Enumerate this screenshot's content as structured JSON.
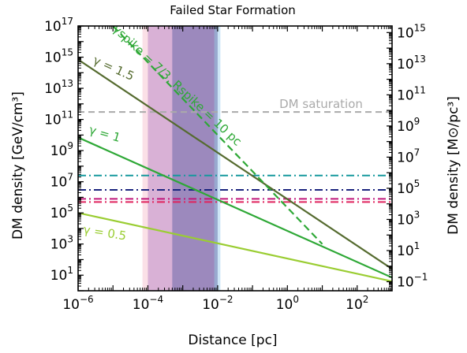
{
  "chart_data": {
    "type": "line",
    "title": "Failed Star Formation",
    "xlabel": "Distance [pc]",
    "ylabel_left": "DM density [GeV/cm³]",
    "ylabel_right": "DM density [M⊙/pc³]",
    "x_scale": "log",
    "y_scale": "log",
    "xlim": [
      1e-06,
      1000
    ],
    "ylim": [
      1,
      1e+17
    ],
    "ylim_right": [
      0.0263,
      2630000000000000.0
    ],
    "x_ticks": [
      {
        "v": 1e-06,
        "base": "10",
        "exp": "−6"
      },
      {
        "v": 0.0001,
        "base": "10",
        "exp": "−4"
      },
      {
        "v": 0.01,
        "base": "10",
        "exp": "−2"
      },
      {
        "v": 1,
        "base": "10",
        "exp": "0"
      },
      {
        "v": 100,
        "base": "10",
        "exp": "2"
      }
    ],
    "y_ticks_left": [
      {
        "v": 10,
        "base": "10",
        "exp": "1"
      },
      {
        "v": 1000.0,
        "base": "10",
        "exp": "3"
      },
      {
        "v": 100000.0,
        "base": "10",
        "exp": "5"
      },
      {
        "v": 10000000.0,
        "base": "10",
        "exp": "7"
      },
      {
        "v": 1000000000.0,
        "base": "10",
        "exp": "9"
      },
      {
        "v": 100000000000.0,
        "base": "10",
        "exp": "11"
      },
      {
        "v": 10000000000000.0,
        "base": "10",
        "exp": "13"
      },
      {
        "v": 1000000000000000.0,
        "base": "10",
        "exp": "15"
      },
      {
        "v": 1e+17,
        "base": "10",
        "exp": "17"
      }
    ],
    "y_ticks_right": [
      {
        "v": 0.1,
        "base": "10",
        "exp": "−1"
      },
      {
        "v": 10,
        "base": "10",
        "exp": "1"
      },
      {
        "v": 1000.0,
        "base": "10",
        "exp": "3"
      },
      {
        "v": 100000.0,
        "base": "10",
        "exp": "5"
      },
      {
        "v": 10000000.0,
        "base": "10",
        "exp": "7"
      },
      {
        "v": 1000000000.0,
        "base": "10",
        "exp": "9"
      },
      {
        "v": 100000000000.0,
        "base": "10",
        "exp": "11"
      },
      {
        "v": 10000000000000.0,
        "base": "10",
        "exp": "13"
      },
      {
        "v": 1000000000000000.0,
        "base": "10",
        "exp": "15"
      }
    ],
    "bands": [
      {
        "x": [
          7e-05,
          0.01
        ],
        "color": "#f4a7b9",
        "opacity": 0.35
      },
      {
        "x": [
          0.0001,
          0.008
        ],
        "color": "#9b59b6",
        "opacity": 0.35
      },
      {
        "x": [
          0.0005,
          0.01
        ],
        "color": "#2c3e8f",
        "opacity": 0.35
      },
      {
        "x": [
          0.008,
          0.012
        ],
        "color": "#5dade2",
        "opacity": 0.3
      }
    ],
    "hlines": [
      {
        "y": 300000000000.0,
        "color": "#aaaaaa",
        "style": "dashed"
      },
      {
        "y": 25000000.0,
        "color": "#16999e",
        "style": "dashdot"
      },
      {
        "y": 3000000.0,
        "color": "#1a237e",
        "style": "dashdot"
      },
      {
        "y": 800000.0,
        "color": "#c0177a",
        "style": "dashdot"
      },
      {
        "y": 500000.0,
        "color": "#e0245e",
        "style": "dashdot"
      }
    ],
    "series": [
      {
        "name": "γ = 1.5",
        "color": "#556b2f",
        "style": "solid",
        "x": [
          1e-06,
          1000
        ],
        "y": [
          700000000000000.0,
          25
        ]
      },
      {
        "name": "γ = 1",
        "color": "#2ea836",
        "style": "solid",
        "x": [
          1e-06,
          1000
        ],
        "y": [
          7000000000.0,
          7
        ]
      },
      {
        "name": "γ = 0.5",
        "color": "#9acd32",
        "style": "solid",
        "x": [
          1e-06,
          1000
        ],
        "y": [
          100000.0,
          4
        ]
      },
      {
        "name": "γspike = 7/3, Rspike = 10 pc",
        "color": "#2ea836",
        "style": "dashed",
        "x": [
          1e-05,
          10
        ],
        "y": [
          1e+17,
          1000.0
        ]
      }
    ],
    "annotations": {
      "saturation": "DM saturation",
      "g15": "γ = 1.5",
      "g1": "γ = 1",
      "g05": "γ = 0.5",
      "spike": "γspike = 7/3, Rspike = 10 pc"
    }
  }
}
